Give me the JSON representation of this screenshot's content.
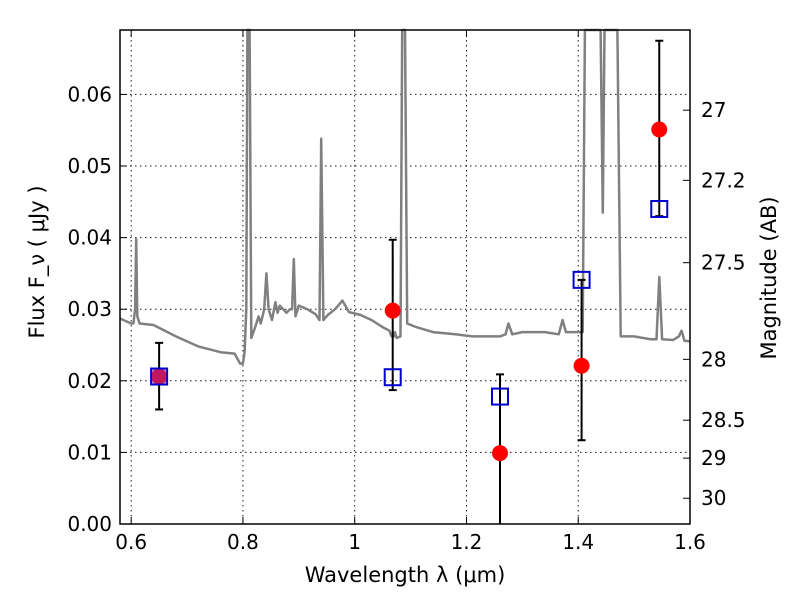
{
  "chart_data": {
    "type": "scatter",
    "title": "",
    "xlabel": "Wavelength  λ (μm)",
    "ylabel": "Flux  F_ν  ( μJy )",
    "ylabel_right": "Magnitude (AB)",
    "xlim": [
      0.58,
      1.6
    ],
    "ylim": [
      0.0,
      0.069
    ],
    "x_ticks": [
      0.6,
      0.8,
      1.0,
      1.2,
      1.4,
      1.6
    ],
    "x_tick_labels": [
      "0.6",
      "0.8",
      "1",
      "1.2",
      "1.4",
      "1.6"
    ],
    "y_ticks": [
      0.0,
      0.01,
      0.02,
      0.03,
      0.04,
      0.05,
      0.06
    ],
    "y_tick_labels": [
      "0.00",
      "0.01",
      "0.02",
      "0.03",
      "0.04",
      "0.05",
      "0.06"
    ],
    "right_ticks": [
      {
        "label": "27",
        "flux": 0.0578
      },
      {
        "label": "27.2",
        "flux": 0.048
      },
      {
        "label": "27.5",
        "flux": 0.0365
      },
      {
        "label": "28",
        "flux": 0.023
      },
      {
        "label": "28.5",
        "flux": 0.0145
      },
      {
        "label": "29",
        "flux": 0.0092
      },
      {
        "label": "30",
        "flux": 0.0036
      }
    ],
    "grid": true,
    "series": [
      {
        "kind": "line",
        "color": "#808080",
        "points": [
          [
            0.58,
            0.0287
          ],
          [
            0.6,
            0.028
          ],
          [
            0.604,
            0.028
          ],
          [
            0.607,
            0.03
          ],
          [
            0.609,
            0.0398
          ],
          [
            0.611,
            0.029
          ],
          [
            0.615,
            0.028
          ],
          [
            0.64,
            0.0278
          ],
          [
            0.68,
            0.0262
          ],
          [
            0.72,
            0.0248
          ],
          [
            0.76,
            0.024
          ],
          [
            0.785,
            0.0238
          ],
          [
            0.795,
            0.0224
          ],
          [
            0.8,
            0.0224
          ],
          [
            0.803,
            0.024
          ],
          [
            0.806,
            0.03
          ],
          [
            0.808,
            0.069
          ],
          [
            0.812,
            0.069
          ],
          [
            0.815,
            0.026
          ],
          [
            0.822,
            0.0275
          ],
          [
            0.828,
            0.029
          ],
          [
            0.832,
            0.028
          ],
          [
            0.838,
            0.03
          ],
          [
            0.842,
            0.035
          ],
          [
            0.846,
            0.03
          ],
          [
            0.852,
            0.0285
          ],
          [
            0.858,
            0.031
          ],
          [
            0.862,
            0.0295
          ],
          [
            0.866,
            0.0305
          ],
          [
            0.872,
            0.03
          ],
          [
            0.878,
            0.0295
          ],
          [
            0.884,
            0.03
          ],
          [
            0.888,
            0.03
          ],
          [
            0.891,
            0.037
          ],
          [
            0.894,
            0.029
          ],
          [
            0.9,
            0.0305
          ],
          [
            0.915,
            0.03
          ],
          [
            0.93,
            0.0293
          ],
          [
            0.937,
            0.0285
          ],
          [
            0.94,
            0.0538
          ],
          [
            0.944,
            0.0285
          ],
          [
            0.952,
            0.0292
          ],
          [
            0.965,
            0.03
          ],
          [
            0.978,
            0.0312
          ],
          [
            0.99,
            0.0296
          ],
          [
            1.01,
            0.0292
          ],
          [
            1.03,
            0.0285
          ],
          [
            1.05,
            0.0275
          ],
          [
            1.062,
            0.027
          ],
          [
            1.066,
            0.0262
          ],
          [
            1.07,
            0.0262
          ],
          [
            1.072,
            0.0268
          ],
          [
            1.075,
            0.026
          ],
          [
            1.082,
            0.0262
          ],
          [
            1.085,
            0.069
          ],
          [
            1.09,
            0.069
          ],
          [
            1.094,
            0.028
          ],
          [
            1.11,
            0.0275
          ],
          [
            1.14,
            0.0268
          ],
          [
            1.18,
            0.0265
          ],
          [
            1.21,
            0.0262
          ],
          [
            1.24,
            0.0262
          ],
          [
            1.26,
            0.0262
          ],
          [
            1.27,
            0.0265
          ],
          [
            1.275,
            0.028
          ],
          [
            1.282,
            0.0265
          ],
          [
            1.3,
            0.0268
          ],
          [
            1.34,
            0.0268
          ],
          [
            1.365,
            0.0265
          ],
          [
            1.372,
            0.0285
          ],
          [
            1.378,
            0.0268
          ],
          [
            1.4,
            0.0268
          ],
          [
            1.408,
            0.0268
          ],
          [
            1.412,
            0.069
          ],
          [
            1.44,
            0.069
          ],
          [
            1.444,
            0.0435
          ],
          [
            1.447,
            0.069
          ],
          [
            1.47,
            0.069
          ],
          [
            1.476,
            0.0262
          ],
          [
            1.5,
            0.0262
          ],
          [
            1.53,
            0.0258
          ],
          [
            1.54,
            0.0258
          ],
          [
            1.545,
            0.0345
          ],
          [
            1.55,
            0.0258
          ],
          [
            1.57,
            0.0257
          ],
          [
            1.58,
            0.0262
          ],
          [
            1.585,
            0.027
          ],
          [
            1.59,
            0.0256
          ],
          [
            1.6,
            0.0255
          ]
        ]
      },
      {
        "kind": "errorbar",
        "color": "#ff0000",
        "marker": "circle",
        "points": [
          {
            "x": 0.65,
            "y": 0.0206,
            "ylo": 0.016,
            "yhi": 0.0253
          },
          {
            "x": 1.068,
            "y": 0.0298,
            "ylo": 0.0187,
            "yhi": 0.0397
          },
          {
            "x": 1.26,
            "y": 0.0099,
            "ylo": 0.0,
            "yhi": 0.0209
          },
          {
            "x": 1.406,
            "y": 0.0221,
            "ylo": 0.0117,
            "yhi": 0.0341
          },
          {
            "x": 1.545,
            "y": 0.0551,
            "ylo": 0.043,
            "yhi": 0.0675
          }
        ]
      },
      {
        "kind": "scatter",
        "color": "#0000cc",
        "marker": "open-square",
        "points": [
          {
            "x": 0.65,
            "y": 0.0206
          },
          {
            "x": 1.068,
            "y": 0.0205
          },
          {
            "x": 1.26,
            "y": 0.0178
          },
          {
            "x": 1.406,
            "y": 0.0341
          },
          {
            "x": 1.545,
            "y": 0.044
          }
        ]
      }
    ]
  }
}
